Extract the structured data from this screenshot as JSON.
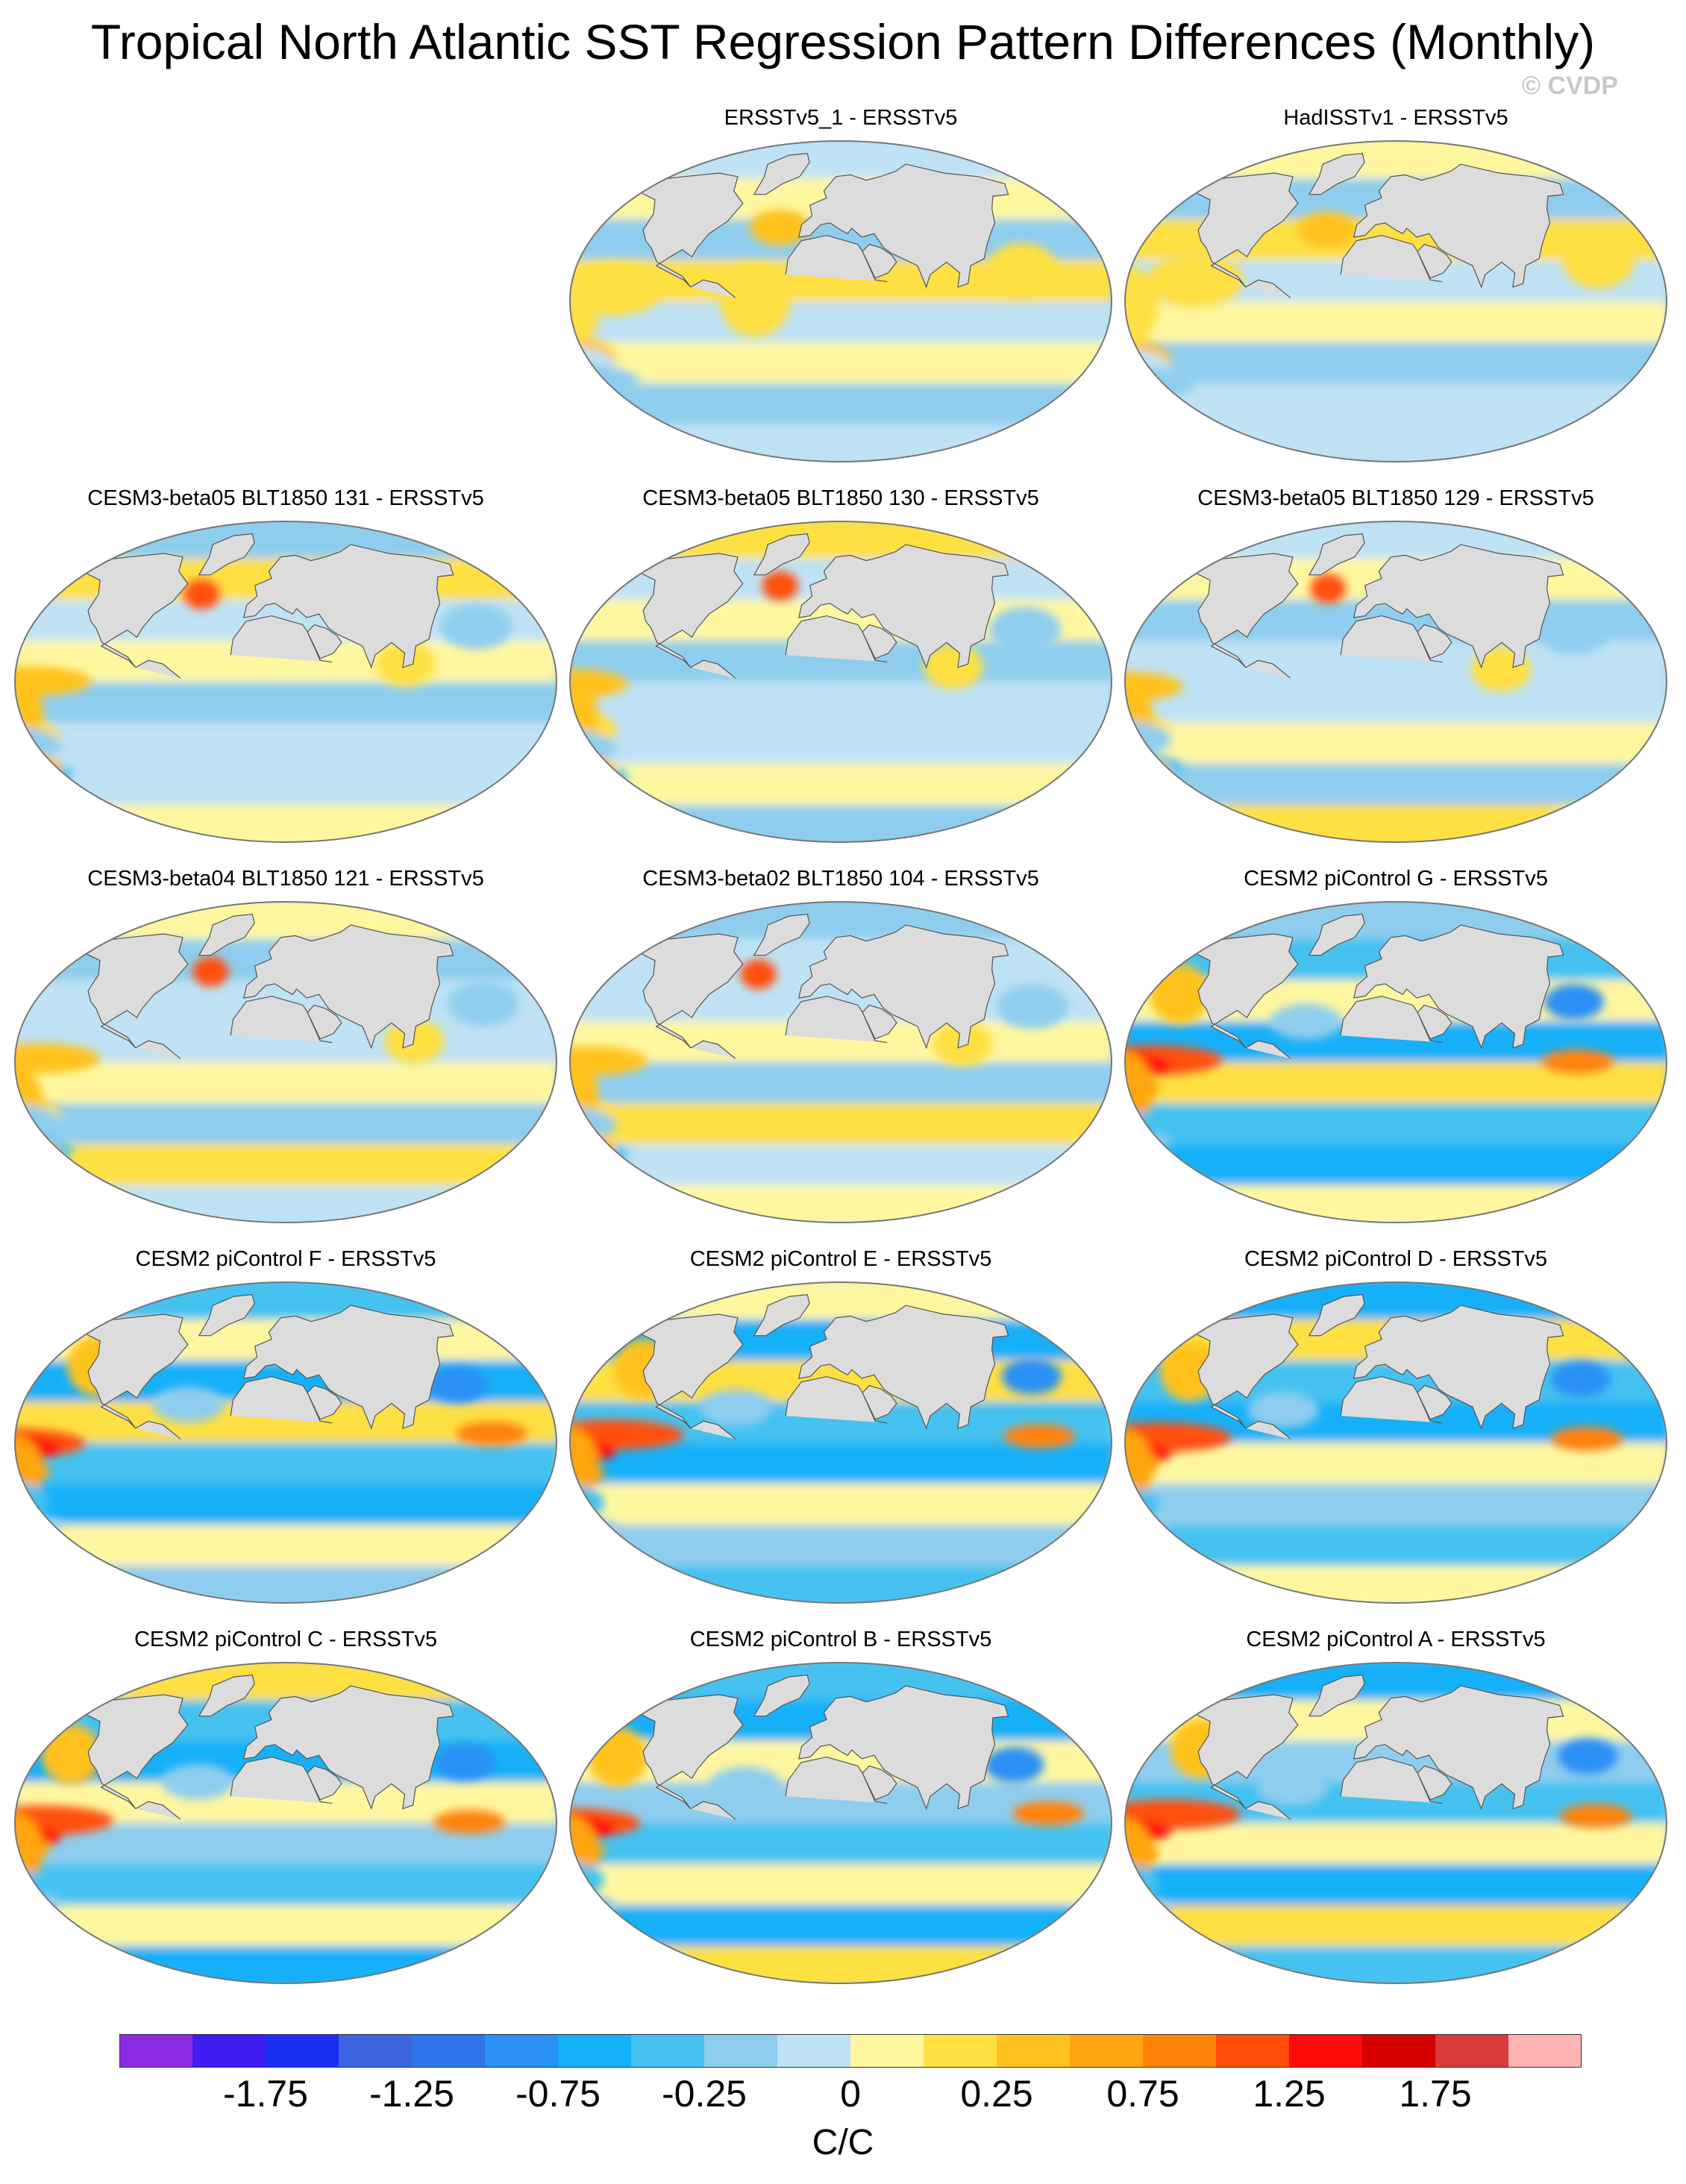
{
  "title": "Tropical North Atlantic SST Regression Pattern Differences (Monthly)",
  "watermark": "© CVDP",
  "chart_data": {
    "type": "heatmap",
    "projection": "robinson",
    "layout": "5 rows x 3 columns, first row has only 2 panels (right side)",
    "panels": [
      {
        "title": "ERSSTv5_1 - ERSSTv5",
        "pattern": "obs"
      },
      {
        "title": "HadISSTv1 - ERSSTv5",
        "pattern": "obs"
      },
      {
        "title": "CESM3-beta05 BLT1850 131 - ERSSTv5",
        "pattern": "beta"
      },
      {
        "title": "CESM3-beta05 BLT1850 130 - ERSSTv5",
        "pattern": "beta"
      },
      {
        "title": "CESM3-beta05 BLT1850 129 - ERSSTv5",
        "pattern": "beta"
      },
      {
        "title": "CESM3-beta04 BLT1850 121 - ERSSTv5",
        "pattern": "beta"
      },
      {
        "title": "CESM3-beta02 BLT1850 104 - ERSSTv5",
        "pattern": "beta"
      },
      {
        "title": "CESM2 piControl G - ERSSTv5",
        "pattern": "cesm2"
      },
      {
        "title": "CESM2 piControl F - ERSSTv5",
        "pattern": "cesm2"
      },
      {
        "title": "CESM2 piControl E - ERSSTv5",
        "pattern": "cesm2"
      },
      {
        "title": "CESM2 piControl D - ERSSTv5",
        "pattern": "cesm2"
      },
      {
        "title": "CESM2 piControl C - ERSSTv5",
        "pattern": "cesm2"
      },
      {
        "title": "CESM2 piControl B - ERSSTv5",
        "pattern": "cesm2"
      },
      {
        "title": "CESM2 piControl A - ERSSTv5",
        "pattern": "cesm2"
      }
    ],
    "colorbar": {
      "units": "C/C",
      "levels": [
        -2.0,
        -1.75,
        -1.5,
        -1.25,
        -1.0,
        -0.75,
        -0.5,
        -0.25,
        -0.1,
        0,
        0.1,
        0.25,
        0.5,
        0.75,
        1.0,
        1.25,
        1.5,
        1.75,
        2.0
      ],
      "colors": [
        "#8a2be2",
        "#3f1df0",
        "#1d2ef5",
        "#3d64e0",
        "#2f74e8",
        "#2b90f5",
        "#14b0f8",
        "#45c2f0",
        "#8fcdee",
        "#bfe2f5",
        "#fff7a0",
        "#ffe042",
        "#ffc21f",
        "#ffa510",
        "#ff8209",
        "#ff4f0a",
        "#ff0a0a",
        "#d60000",
        "#d93a3a",
        "#ffb3b3"
      ],
      "tick_labels": [
        "-1.75",
        "-1.25",
        "-0.75",
        "-0.25",
        "0",
        "0.25",
        "0.75",
        "1.25",
        "1.75"
      ],
      "tick_levels": [
        -1.75,
        -1.25,
        -0.75,
        -0.25,
        0,
        0.25,
        0.75,
        1.25,
        1.75
      ]
    },
    "land_color": "#dcdcdc",
    "background_color": "#ffffff"
  }
}
